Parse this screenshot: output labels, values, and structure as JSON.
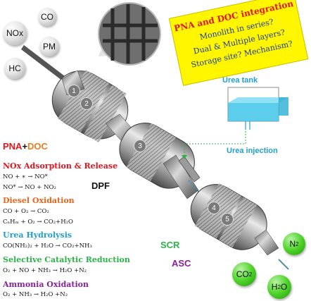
{
  "gases_in": {
    "co": "CO",
    "nox": "NOx",
    "pm": "PM",
    "hc": "HC"
  },
  "gases_out": {
    "n2": "N",
    "n2_sub": "2",
    "co2": "CO",
    "co2_sub": "2",
    "h2o_h": "H",
    "h2o_sub": "2",
    "h2o_o": "O"
  },
  "integration_box": {
    "title": "PNA and DOC integration",
    "line1": "Monolith in series?",
    "line2": "Dual & Multiple layers?",
    "line3": "Storage site? Mechanism?"
  },
  "urea": {
    "tank_label": "Urea tank",
    "injection_label": "Urea injection"
  },
  "component_labels": {
    "pna": "PNA",
    "plus": "+",
    "doc": "DOC",
    "dpf": "DPF",
    "scr": "SCR",
    "asc": "ASC"
  },
  "stage_numbers": [
    "1",
    "2",
    "3",
    "4",
    "5"
  ],
  "reactions": {
    "nox_title": "NOx Adsorption & Release",
    "nox_eq1": "NO + ∗ → NO*",
    "nox_eq2": "NO* → NO + NO₂",
    "doc_title": "Diesel Oxidation",
    "doc_eq1": "CO + O₂ → CO₂",
    "doc_eq2": "CₙHₘ + O₂ → CO₂+H₂O",
    "urea_title": "Urea Hydrolysis",
    "urea_eq1": "CO(NH₂)₂ + H₂O → CO₂+NH₃",
    "scr_title": "Selective Catalytic Reduction",
    "scr_eq1": "O₂ + NO + NH₃ → H₂O +N₂",
    "asc_title": "Ammonia Oxidation",
    "asc_eq1": "O₂ + NH₃ → H₂O +N₂"
  },
  "colors": {
    "pna": "#e8141e",
    "doc": "#f07c1e",
    "nox_title": "#e8141e",
    "doc_title": "#e8661e",
    "urea_title": "#1ea0d6",
    "scr_title": "#2db34a",
    "asc_title": "#8a1e9c",
    "scr_label": "#2db34a",
    "asc_label": "#8a1e9c",
    "urea_blue": "#1ea0d6",
    "box_red": "#e8141e",
    "box_blue": "#1a3a9c"
  }
}
